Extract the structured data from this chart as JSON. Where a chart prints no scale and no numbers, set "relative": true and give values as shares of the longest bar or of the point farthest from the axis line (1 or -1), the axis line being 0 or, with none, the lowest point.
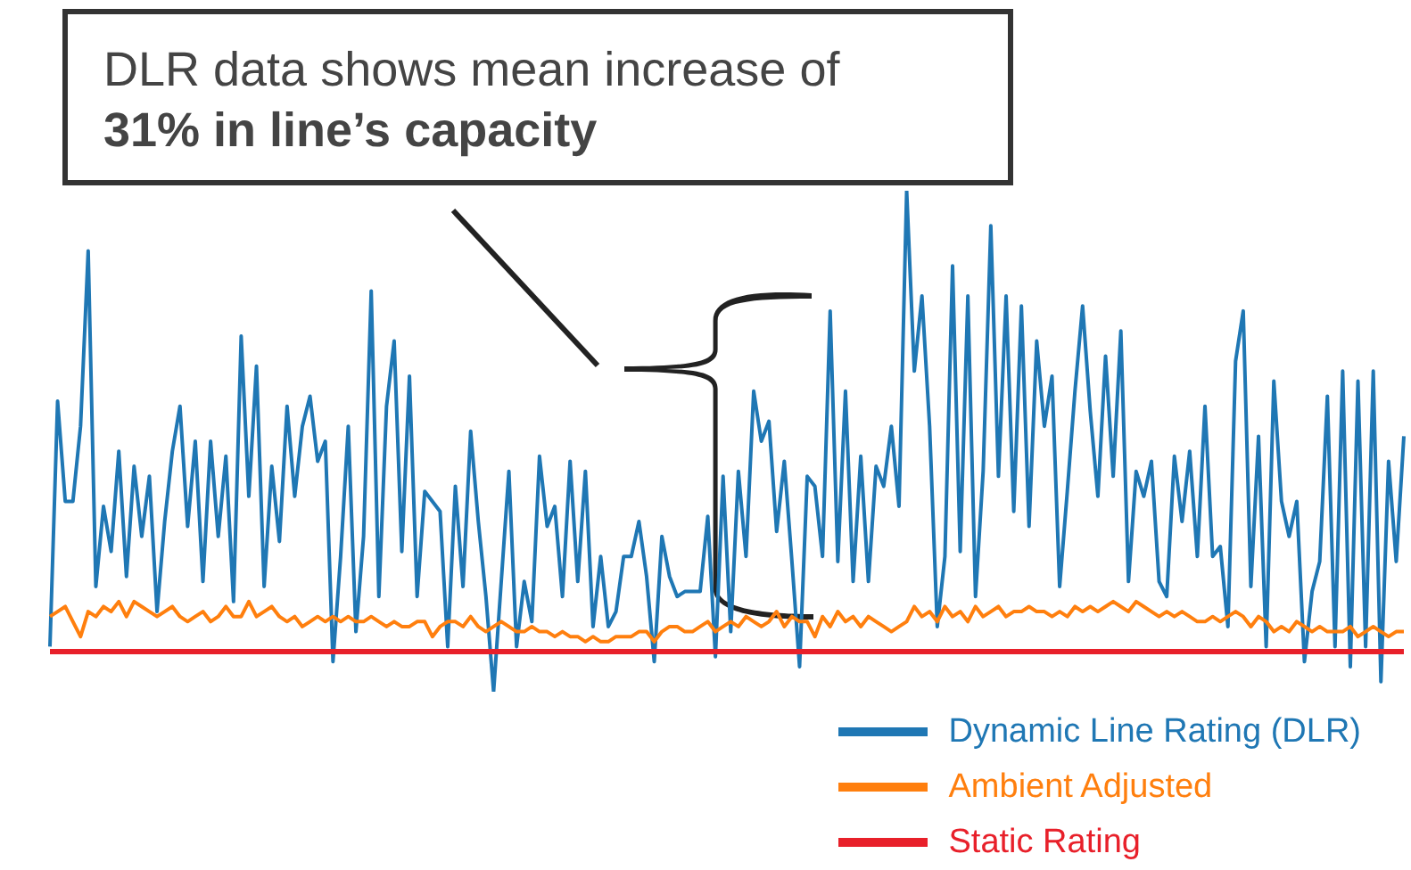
{
  "chart_data": {
    "type": "line",
    "relative": true,
    "legend": "bottom right",
    "annotations": [
      "DLR data shows mean increase of",
      "31% in line’s capacity"
    ],
    "categories": [
      null,
      null,
      null,
      null,
      null,
      null,
      null,
      null,
      null,
      null,
      null,
      null,
      null,
      null,
      null,
      null,
      null,
      null,
      null,
      null,
      null,
      null,
      null,
      null,
      null,
      null,
      null,
      null,
      null,
      null,
      null,
      null,
      null,
      null,
      null,
      null,
      null,
      null,
      null,
      null,
      null,
      null,
      null,
      null,
      null,
      null,
      null,
      null,
      null,
      null,
      null,
      null,
      null,
      null,
      null,
      null,
      null,
      null,
      null,
      null,
      null,
      null,
      null,
      null,
      null,
      null,
      null,
      null,
      null,
      null,
      null,
      null,
      null,
      null,
      null,
      null,
      null,
      null,
      null,
      null,
      null,
      null,
      null,
      null,
      null,
      null,
      null,
      null,
      null,
      null,
      null,
      null,
      null,
      null,
      null,
      null,
      null,
      null,
      null,
      null,
      null,
      null,
      null,
      null,
      null,
      null,
      null,
      null,
      null,
      null,
      null,
      null,
      null,
      null,
      null,
      null,
      null,
      null,
      null,
      null,
      null,
      null,
      null,
      null,
      null,
      null,
      null,
      null,
      null,
      null,
      null,
      null,
      null,
      null,
      null,
      null,
      null,
      null,
      null,
      null,
      null,
      null,
      null,
      null,
      null,
      null,
      null,
      null,
      null,
      null,
      null,
      null,
      null,
      null,
      null,
      null,
      null,
      null,
      null,
      null,
      null,
      null,
      null,
      null,
      null,
      null,
      null,
      null,
      null,
      null,
      null,
      null,
      null,
      null,
      null,
      null,
      null,
      null
    ],
    "series": [
      {
        "name": "Dynamic Line Rating (DLR)",
        "color": "#1f77b4",
        "values": [
          0.09,
          0.58,
          0.38,
          0.38,
          0.53,
          0.88,
          0.21,
          0.37,
          0.28,
          0.48,
          0.23,
          0.45,
          0.31,
          0.43,
          0.16,
          0.34,
          0.48,
          0.57,
          0.33,
          0.5,
          0.22,
          0.5,
          0.31,
          0.47,
          0.18,
          0.71,
          0.39,
          0.65,
          0.21,
          0.45,
          0.3,
          0.57,
          0.39,
          0.53,
          0.59,
          0.46,
          0.5,
          0.06,
          0.27,
          0.53,
          0.12,
          0.31,
          0.8,
          0.19,
          0.57,
          0.7,
          0.28,
          0.63,
          0.19,
          0.4,
          0.38,
          0.36,
          0.09,
          0.41,
          0.21,
          0.52,
          0.34,
          0.19,
          0,
          0.22,
          0.44,
          0.09,
          0.22,
          0.14,
          0.47,
          0.33,
          0.37,
          0.19,
          0.46,
          0.22,
          0.44,
          0.13,
          0.27,
          0.13,
          0.16,
          0.27,
          0.27,
          0.34,
          0.23,
          0.06,
          0.31,
          0.23,
          0.19,
          0.2,
          0.2,
          0.2,
          0.35,
          0.07,
          0.43,
          0.12,
          0.44,
          0.27,
          0.6,
          0.5,
          0.54,
          0.32,
          0.46,
          0.26,
          0.05,
          0.43,
          0.41,
          0.27,
          0.76,
          0.26,
          0.6,
          0.22,
          0.47,
          0.22,
          0.45,
          0.41,
          0.53,
          0.37,
          1,
          0.64,
          0.79,
          0.53,
          0.13,
          0.27,
          0.85,
          0.28,
          0.79,
          0.19,
          0.44,
          0.93,
          0.43,
          0.79,
          0.36,
          0.77,
          0.33,
          0.7,
          0.53,
          0.63,
          0.21,
          0.4,
          0.6,
          0.77,
          0.56,
          0.39,
          0.67,
          0.43,
          0.72,
          0.22,
          0.44,
          0.39,
          0.46,
          0.22,
          0.19,
          0.47,
          0.34,
          0.48,
          0.27,
          0.57,
          0.27,
          0.29,
          0.13,
          0.66,
          0.76,
          0.21,
          0.51,
          0.09,
          0.62,
          0.38,
          0.31,
          0.38,
          0.06,
          0.2,
          0.26,
          0.59,
          0.09,
          0.64,
          0.05,
          0.62,
          0.09,
          0.64,
          0.02,
          0.46,
          0.26,
          0.51
        ]
      },
      {
        "name": "Ambient Adjusted",
        "color": "#ff7f0e",
        "values": [
          0.15,
          0.16,
          0.17,
          0.14,
          0.11,
          0.16,
          0.15,
          0.17,
          0.16,
          0.18,
          0.15,
          0.18,
          0.17,
          0.16,
          0.15,
          0.16,
          0.17,
          0.15,
          0.14,
          0.15,
          0.16,
          0.14,
          0.15,
          0.17,
          0.15,
          0.15,
          0.18,
          0.15,
          0.16,
          0.17,
          0.15,
          0.14,
          0.15,
          0.13,
          0.14,
          0.15,
          0.14,
          0.15,
          0.14,
          0.15,
          0.14,
          0.14,
          0.15,
          0.14,
          0.13,
          0.14,
          0.13,
          0.13,
          0.14,
          0.14,
          0.11,
          0.13,
          0.14,
          0.14,
          0.13,
          0.15,
          0.13,
          0.12,
          0.13,
          0.14,
          0.13,
          0.12,
          0.12,
          0.13,
          0.12,
          0.12,
          0.11,
          0.12,
          0.11,
          0.11,
          0.1,
          0.11,
          0.1,
          0.1,
          0.11,
          0.11,
          0.11,
          0.12,
          0.12,
          0.1,
          0.12,
          0.13,
          0.13,
          0.12,
          0.12,
          0.13,
          0.14,
          0.12,
          0.13,
          0.14,
          0.13,
          0.15,
          0.14,
          0.13,
          0.14,
          0.16,
          0.13,
          0.15,
          0.14,
          0.14,
          0.11,
          0.15,
          0.13,
          0.16,
          0.14,
          0.15,
          0.13,
          0.15,
          0.14,
          0.13,
          0.12,
          0.13,
          0.14,
          0.17,
          0.15,
          0.16,
          0.14,
          0.17,
          0.15,
          0.16,
          0.14,
          0.17,
          0.15,
          0.16,
          0.17,
          0.15,
          0.16,
          0.16,
          0.17,
          0.16,
          0.16,
          0.15,
          0.16,
          0.15,
          0.17,
          0.16,
          0.17,
          0.16,
          0.17,
          0.18,
          0.17,
          0.16,
          0.18,
          0.17,
          0.16,
          0.15,
          0.16,
          0.15,
          0.16,
          0.15,
          0.14,
          0.14,
          0.15,
          0.14,
          0.15,
          0.16,
          0.15,
          0.13,
          0.15,
          0.14,
          0.12,
          0.13,
          0.12,
          0.14,
          0.13,
          0.12,
          0.13,
          0.12,
          0.12,
          0.12,
          0.13,
          0.11,
          0.12,
          0.13,
          0.12,
          0.11,
          0.12,
          0.12
        ]
      },
      {
        "name": "Static Rating",
        "color": "#e8202a",
        "values": [
          0.08,
          0.08,
          0.08,
          0.08,
          0.08,
          0.08,
          0.08,
          0.08,
          0.08,
          0.08,
          0.08,
          0.08,
          0.08,
          0.08,
          0.08,
          0.08,
          0.08,
          0.08,
          0.08,
          0.08,
          0.08,
          0.08,
          0.08,
          0.08,
          0.08,
          0.08,
          0.08,
          0.08,
          0.08,
          0.08,
          0.08,
          0.08,
          0.08,
          0.08,
          0.08,
          0.08,
          0.08,
          0.08,
          0.08,
          0.08,
          0.08,
          0.08,
          0.08,
          0.08,
          0.08,
          0.08,
          0.08,
          0.08,
          0.08,
          0.08,
          0.08,
          0.08,
          0.08,
          0.08,
          0.08,
          0.08,
          0.08,
          0.08,
          0.08,
          0.08,
          0.08,
          0.08,
          0.08,
          0.08,
          0.08,
          0.08,
          0.08,
          0.08,
          0.08,
          0.08,
          0.08,
          0.08,
          0.08,
          0.08,
          0.08,
          0.08,
          0.08,
          0.08,
          0.08,
          0.08,
          0.08,
          0.08,
          0.08,
          0.08,
          0.08,
          0.08,
          0.08,
          0.08,
          0.08,
          0.08,
          0.08,
          0.08,
          0.08,
          0.08,
          0.08,
          0.08,
          0.08,
          0.08,
          0.08,
          0.08,
          0.08,
          0.08,
          0.08,
          0.08,
          0.08,
          0.08,
          0.08,
          0.08,
          0.08,
          0.08,
          0.08,
          0.08,
          0.08,
          0.08,
          0.08,
          0.08,
          0.08,
          0.08,
          0.08,
          0.08,
          0.08,
          0.08,
          0.08,
          0.08,
          0.08,
          0.08,
          0.08,
          0.08,
          0.08,
          0.08,
          0.08,
          0.08,
          0.08,
          0.08,
          0.08,
          0.08,
          0.08,
          0.08,
          0.08,
          0.08,
          0.08,
          0.08,
          0.08,
          0.08,
          0.08,
          0.08,
          0.08,
          0.08,
          0.08,
          0.08,
          0.08,
          0.08,
          0.08,
          0.08,
          0.08,
          0.08,
          0.08,
          0.08,
          0.08,
          0.08,
          0.08,
          0.08,
          0.08,
          0.08,
          0.08,
          0.08,
          0.08,
          0.08,
          0.08,
          0.08,
          0.08,
          0.08,
          0.08,
          0.08,
          0.08,
          0.08,
          0.08,
          0.08
        ]
      }
    ]
  }
}
